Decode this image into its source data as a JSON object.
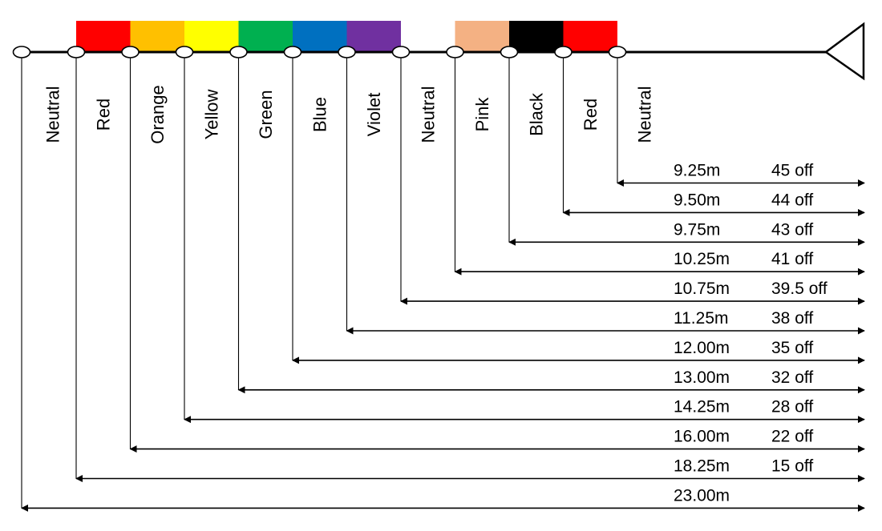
{
  "diagram": {
    "zones": [
      {
        "label": "Neutral",
        "color": null
      },
      {
        "label": "Red",
        "color": "#ff0000"
      },
      {
        "label": "Orange",
        "color": "#ffc000"
      },
      {
        "label": "Yellow",
        "color": "#ffff00"
      },
      {
        "label": "Green",
        "color": "#00b050"
      },
      {
        "label": "Blue",
        "color": "#0070c0"
      },
      {
        "label": "Violet",
        "color": "#7030a0"
      },
      {
        "label": "Neutral",
        "color": null
      },
      {
        "label": "Pink",
        "color": "#f4b183"
      },
      {
        "label": "Black",
        "color": "#000000"
      },
      {
        "label": "Red",
        "color": "#ff0000"
      },
      {
        "label": "Neutral",
        "color": null
      }
    ],
    "measurements": [
      {
        "marker": 10,
        "distance": "9.25m",
        "off": "45 off"
      },
      {
        "marker": 9,
        "distance": "9.50m",
        "off": "44 off"
      },
      {
        "marker": 8,
        "distance": "9.75m",
        "off": "43 off"
      },
      {
        "marker": 7,
        "distance": "10.25m",
        "off": "41 off"
      },
      {
        "marker": 6,
        "distance": "10.75m",
        "off": "39.5 off"
      },
      {
        "marker": 5,
        "distance": "11.25m",
        "off": "38 off"
      },
      {
        "marker": 4,
        "distance": "12.00m",
        "off": "35 off"
      },
      {
        "marker": 3,
        "distance": "13.00m",
        "off": "32 off"
      },
      {
        "marker": 2,
        "distance": "14.25m",
        "off": "28 off"
      },
      {
        "marker": 1,
        "distance": "16.00m",
        "off": "22 off"
      },
      {
        "marker": 0,
        "distance": "18.25m",
        "off": "15 off"
      },
      {
        "marker": -1,
        "distance": "23.00m",
        "off": ""
      }
    ]
  }
}
